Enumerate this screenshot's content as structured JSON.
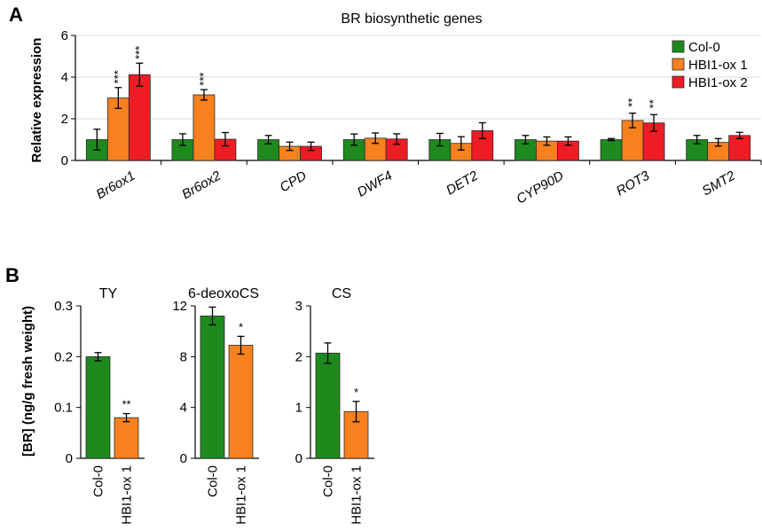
{
  "panel_labels": [
    "A",
    "B"
  ],
  "colors": {
    "col0": "#1e8a1e",
    "hbi1_1": "#f7811f",
    "hbi1_2": "#ee1c25"
  },
  "chart_data": [
    {
      "id": "A",
      "type": "bar",
      "title": "BR biosynthetic genes",
      "ylabel": "Relative expression",
      "ylim": [
        0,
        6
      ],
      "yticks": [
        0,
        2,
        4,
        6
      ],
      "categories": [
        "Br6ox1",
        "Br6ox2",
        "CPD",
        "DWF4",
        "DET2",
        "CYP90D",
        "ROT3",
        "SMT2"
      ],
      "legend_position": "top-right",
      "grid": "horizontal",
      "series": [
        {
          "name": "Col-0",
          "color": "#1e8a1e",
          "values": [
            1.0,
            1.0,
            1.0,
            1.0,
            1.0,
            1.0,
            1.0,
            1.0
          ],
          "errors": [
            0.5,
            0.28,
            0.2,
            0.27,
            0.3,
            0.2,
            0.05,
            0.2
          ],
          "sig": [
            "",
            "",
            "",
            "",
            "",
            "",
            "",
            ""
          ]
        },
        {
          "name": "HBI1-ox 1",
          "color": "#f7811f",
          "values": [
            3.0,
            3.15,
            0.68,
            1.07,
            0.82,
            0.93,
            1.92,
            0.87
          ],
          "errors": [
            0.5,
            0.25,
            0.2,
            0.25,
            0.32,
            0.2,
            0.35,
            0.18
          ],
          "sig": [
            "***",
            "***",
            "",
            "",
            "",
            "",
            "**",
            ""
          ]
        },
        {
          "name": "HBI1-ox 2",
          "color": "#ee1c25",
          "values": [
            4.12,
            1.02,
            0.68,
            1.03,
            1.43,
            0.93,
            1.8,
            1.2
          ],
          "errors": [
            0.55,
            0.32,
            0.2,
            0.25,
            0.38,
            0.2,
            0.4,
            0.15
          ],
          "sig": [
            "***",
            "",
            "",
            "",
            "",
            "",
            "**",
            ""
          ]
        }
      ]
    },
    {
      "id": "B1",
      "type": "bar",
      "title": "TY",
      "ylabel": "[BR]  (ng/g fresh weight)",
      "ylim": [
        0,
        0.3
      ],
      "yticks": [
        "0",
        "0.1",
        "0.2",
        "0.3"
      ],
      "categories": [
        "Col-0",
        "HBI1-ox 1"
      ],
      "values": [
        0.2,
        0.08
      ],
      "errors": [
        0.008,
        0.008
      ],
      "sig": [
        "",
        "**"
      ]
    },
    {
      "id": "B2",
      "type": "bar",
      "title": "6-deoxoCS",
      "ylim": [
        0,
        12
      ],
      "yticks": [
        "0",
        "4",
        "8",
        "12"
      ],
      "categories": [
        "Col-0",
        "HBI1-ox 1"
      ],
      "values": [
        11.2,
        8.9
      ],
      "errors": [
        0.7,
        0.7
      ],
      "sig": [
        "",
        "*"
      ]
    },
    {
      "id": "B3",
      "type": "bar",
      "title": "CS",
      "ylim": [
        0,
        3
      ],
      "yticks": [
        "0",
        "1",
        "2",
        "3"
      ],
      "categories": [
        "Col-0",
        "HBI1-ox 1"
      ],
      "values": [
        2.07,
        0.92
      ],
      "errors": [
        0.2,
        0.2
      ],
      "sig": [
        "",
        "*"
      ]
    }
  ]
}
